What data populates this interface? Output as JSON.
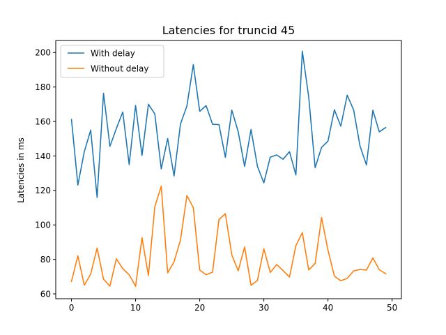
{
  "chart_data": {
    "type": "line",
    "title": "Latencies for truncid 45",
    "xlabel": "",
    "ylabel": "Latencies in ms",
    "xlim": [
      -2.45,
      51.45
    ],
    "ylim": [
      57.2,
      207.0
    ],
    "xticks": [
      0,
      10,
      20,
      30,
      40,
      50
    ],
    "yticks": [
      60,
      80,
      100,
      120,
      140,
      160,
      180,
      200
    ],
    "grid": false,
    "legend_position": "top-left",
    "x": [
      0,
      1,
      2,
      3,
      4,
      5,
      6,
      7,
      8,
      9,
      10,
      11,
      12,
      13,
      14,
      15,
      16,
      17,
      18,
      19,
      20,
      21,
      22,
      23,
      24,
      25,
      26,
      27,
      28,
      29,
      30,
      31,
      32,
      33,
      34,
      35,
      36,
      37,
      38,
      39,
      40,
      41,
      42,
      43,
      44,
      45,
      46,
      47,
      48,
      49
    ],
    "series": [
      {
        "name": "With delay",
        "color": "#1f77b4",
        "values": [
          161.2,
          123.1,
          142.5,
          155.0,
          115.9,
          176.4,
          145.6,
          155.9,
          165.5,
          135.0,
          169.3,
          140.3,
          170.0,
          164.4,
          132.5,
          150.1,
          128.4,
          158.5,
          169.0,
          193.0,
          165.9,
          169.2,
          158.4,
          158.2,
          139.2,
          166.6,
          154.1,
          133.9,
          155.4,
          134.0,
          124.4,
          139.3,
          140.6,
          138.1,
          142.5,
          129.0,
          200.8,
          174.1,
          133.2,
          145.0,
          148.6,
          166.8,
          157.3,
          175.3,
          166.7,
          145.7,
          134.8,
          166.6,
          154.0,
          156.5
        ]
      },
      {
        "name": "Without delay",
        "color": "#ff7f0e",
        "values": [
          67.2,
          82.1,
          65.0,
          71.5,
          86.6,
          68.5,
          64.5,
          80.4,
          74.6,
          71.1,
          64.4,
          92.6,
          70.6,
          110.6,
          122.5,
          72.2,
          78.6,
          91.2,
          117.0,
          110.1,
          73.8,
          71.1,
          72.6,
          103.1,
          106.5,
          82.7,
          73.4,
          87.2,
          65.0,
          67.8,
          86.2,
          72.4,
          77.0,
          73.5,
          69.8,
          88.0,
          95.5,
          73.9,
          77.6,
          104.3,
          85.4,
          70.3,
          67.6,
          69.0,
          73.3,
          74.2,
          73.8,
          80.9,
          74.0,
          71.7
        ]
      }
    ]
  }
}
